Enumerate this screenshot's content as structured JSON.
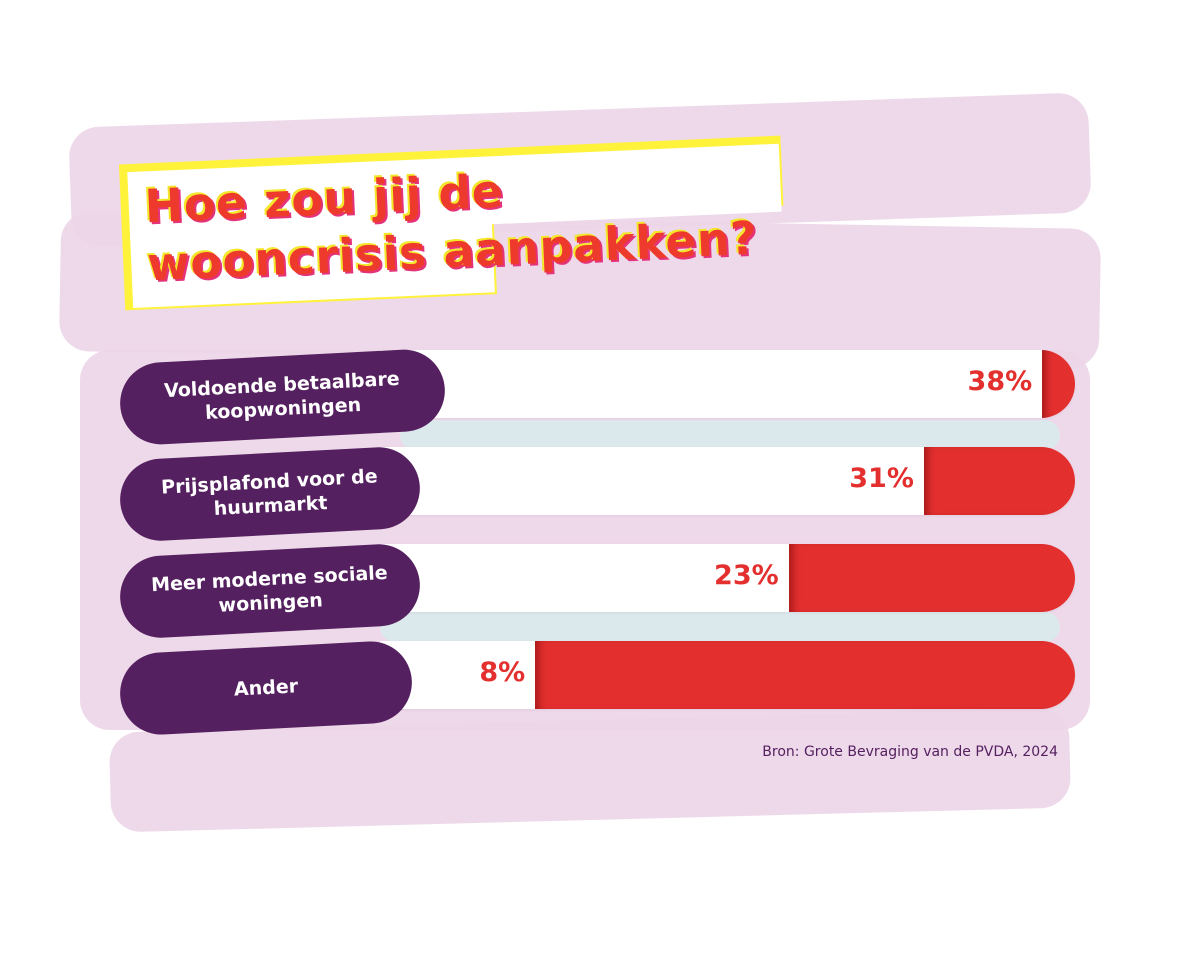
{
  "chart_data": {
    "type": "bar",
    "title": "Hoe zou jij de wooncrisis aanpakken?",
    "categories": [
      "Voldoende betaalbare koopwoningen",
      "Prijsplafond voor de huurmarkt",
      "Meer moderne sociale woningen",
      "Ander"
    ],
    "values": [
      38,
      31,
      23,
      8
    ],
    "value_labels": [
      "38%",
      "31%",
      "23%",
      "8%"
    ],
    "unit": "%",
    "source": "Bron: Grote Bevraging van de PVDA, 2024"
  },
  "colors": {
    "bar_fill": "#e42f2f",
    "label_bg": "#55205f",
    "title": "#ee3a2c",
    "background_strokes": "#ecd5e8"
  }
}
